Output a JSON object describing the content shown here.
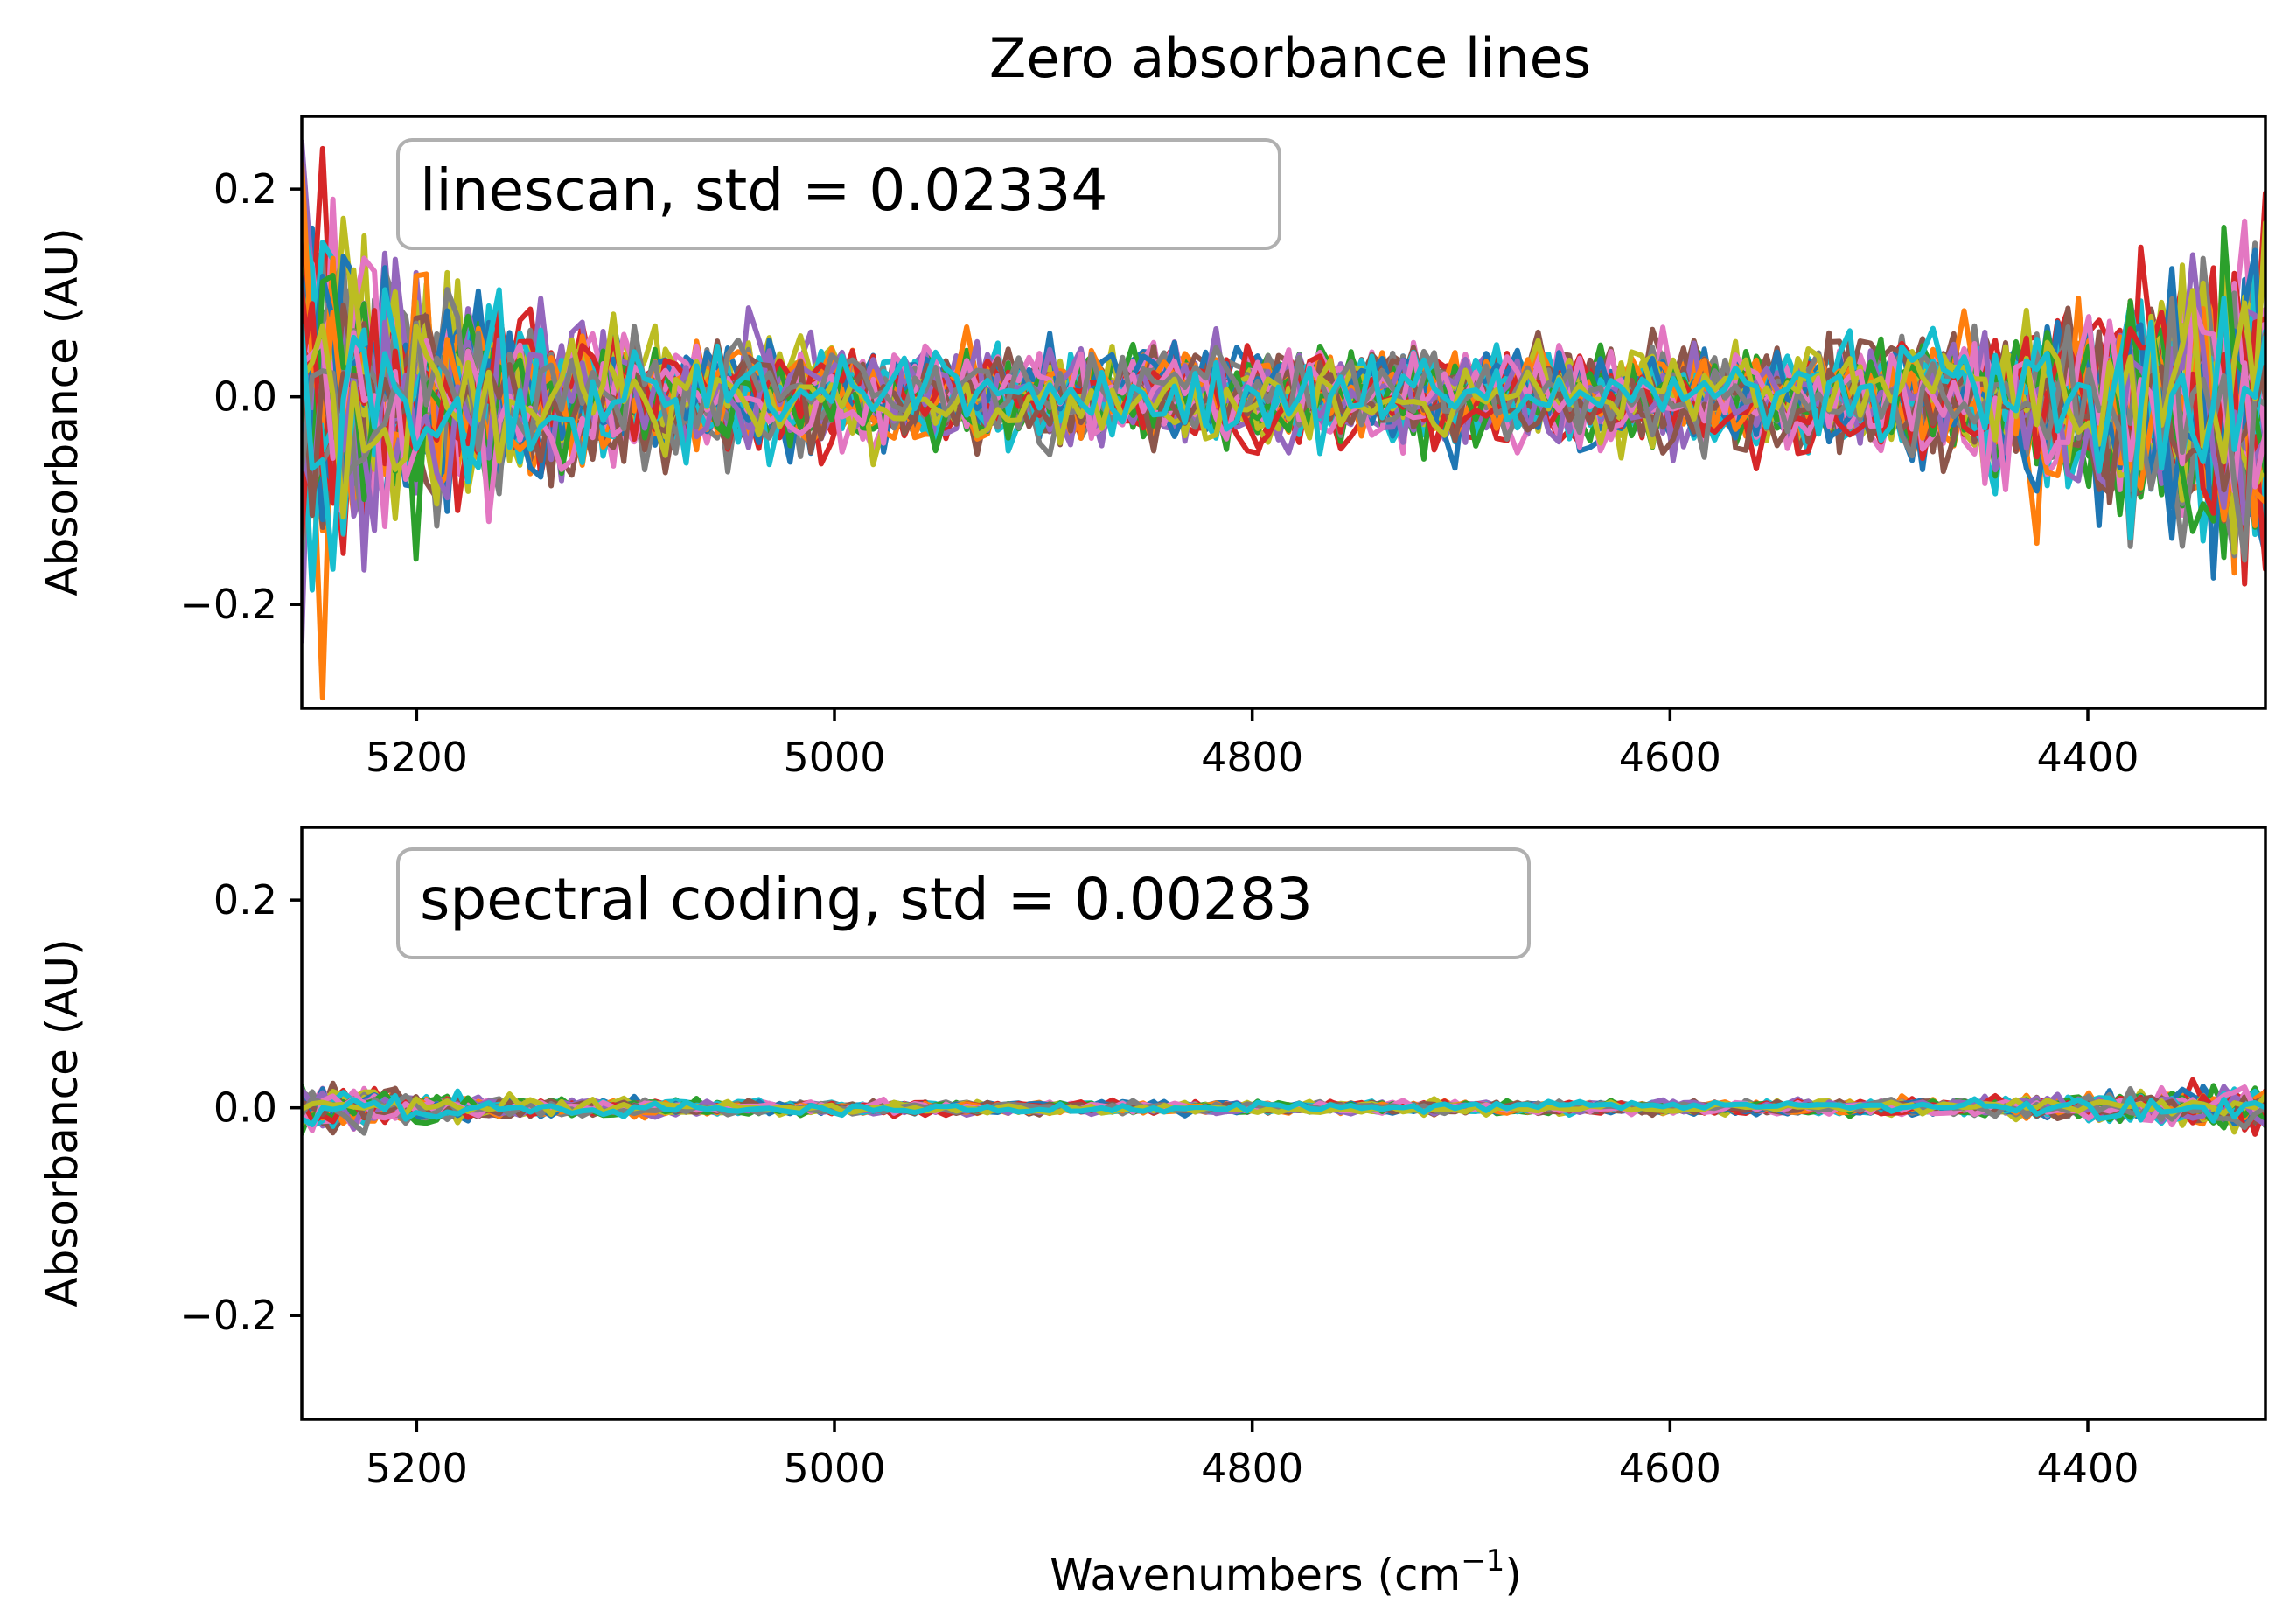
{
  "figure": {
    "title": "Zero absorbance lines"
  },
  "chart_data": [
    {
      "type": "line",
      "panel": "top",
      "annotation": "linescan, std = 0.02334",
      "ylabel": "Absorbance (AU)",
      "xlabel": "",
      "xlim": [
        5255,
        4315
      ],
      "ylim": [
        -0.3,
        0.27
      ],
      "xticks": [
        5200,
        5000,
        4800,
        4600,
        4400
      ],
      "xtick_labels": [
        "5200",
        "5000",
        "4800",
        "4600",
        "4400"
      ],
      "yticks": [
        0.2,
        0.0,
        -0.2
      ],
      "ytick_labels": [
        "0.2",
        "0.0",
        "−0.2"
      ],
      "grid": false,
      "n_series": 50,
      "std": 0.02334,
      "colors": [
        "#1f77b4",
        "#ff7f0e",
        "#2ca02c",
        "#d62728",
        "#9467bd",
        "#8c564b",
        "#e377c2",
        "#7f7f7f",
        "#bcbd22",
        "#17becf"
      ]
    },
    {
      "type": "line",
      "panel": "bottom",
      "annotation": "spectral coding, std = 0.00283",
      "ylabel": "Absorbance (AU)",
      "xlabel": "Wavenumbers (cm",
      "xlabel_sup": "−1",
      "xlabel_end": ")",
      "xlim": [
        5255,
        4315
      ],
      "ylim": [
        -0.3,
        0.27
      ],
      "xticks": [
        5200,
        5000,
        4800,
        4600,
        4400
      ],
      "xtick_labels": [
        "5200",
        "5000",
        "4800",
        "4600",
        "4400"
      ],
      "yticks": [
        0.2,
        0.0,
        -0.2
      ],
      "ytick_labels": [
        "0.2",
        "0.0",
        "−0.2"
      ],
      "grid": false,
      "n_series": 50,
      "std": 0.00283,
      "colors": [
        "#1f77b4",
        "#ff7f0e",
        "#2ca02c",
        "#d62728",
        "#9467bd",
        "#8c564b",
        "#e377c2",
        "#7f7f7f",
        "#bcbd22",
        "#17becf"
      ]
    }
  ]
}
